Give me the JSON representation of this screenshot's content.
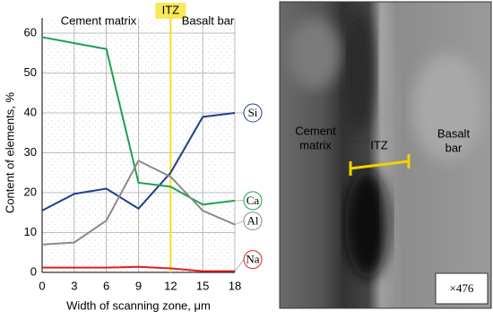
{
  "chart_data": {
    "type": "line",
    "x": [
      0,
      3,
      6,
      9,
      12,
      15,
      18
    ],
    "xlim": [
      0,
      18
    ],
    "xticks": [
      0,
      3,
      6,
      9,
      12,
      15,
      18
    ],
    "ylim": [
      0,
      60
    ],
    "yticks": [
      0,
      10,
      20,
      30,
      40,
      50,
      60
    ],
    "xlabel": "Width of scanning zone, μm",
    "ylabel": "Content of elements, %",
    "grid": true,
    "annotations": [
      "Cement matrix",
      "ITZ",
      "Basalt bar"
    ],
    "vline": 12,
    "series": [
      {
        "name": "Si",
        "color": "#1f3f8f",
        "values": [
          15.5,
          19.7,
          21,
          16,
          25,
          39,
          40
        ]
      },
      {
        "name": "Ca",
        "color": "#1fa050",
        "values": [
          59,
          57.5,
          56,
          22.5,
          21.5,
          17,
          18
        ]
      },
      {
        "name": "Al",
        "color": "#8a8a8a",
        "values": [
          7,
          7.5,
          13,
          28,
          24,
          15.5,
          12
        ]
      },
      {
        "name": "Na",
        "color": "#e02020",
        "values": [
          1.2,
          1.2,
          1.2,
          1.4,
          1,
          0.3,
          0.3
        ]
      }
    ]
  },
  "micrograph": {
    "labels": [
      [
        "Cement",
        "matrix"
      ],
      [
        "ITZ"
      ],
      [
        "Basalt",
        "bar"
      ]
    ],
    "magnification": "×476"
  }
}
